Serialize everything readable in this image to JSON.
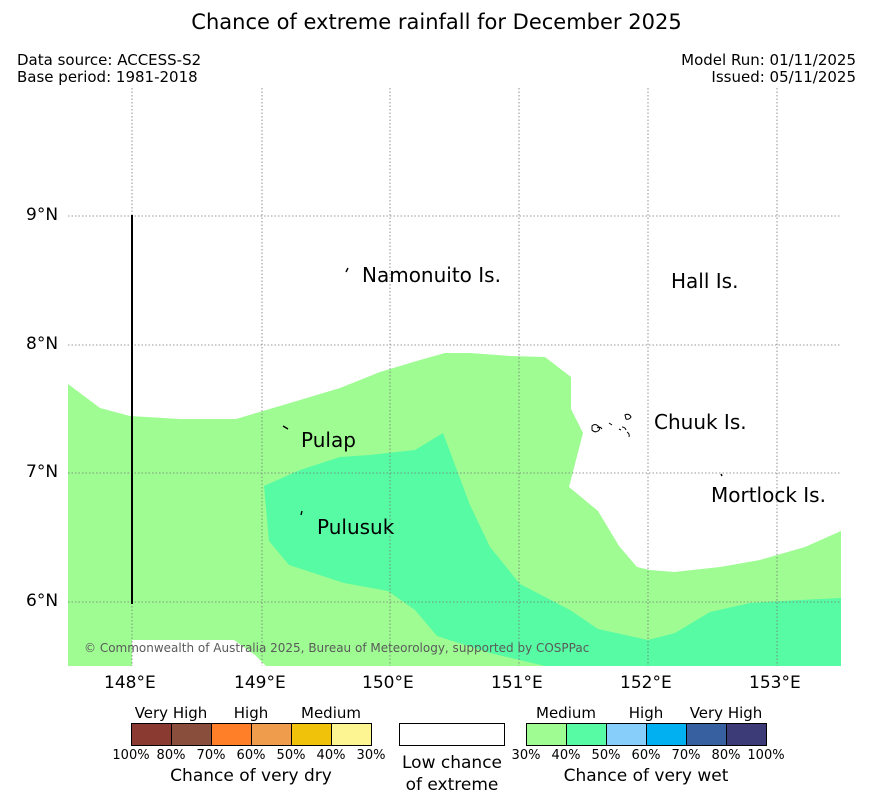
{
  "title": "Chance of extreme rainfall for December 2025",
  "header": {
    "data_source": "Data source: ACCESS-S2",
    "base_period": "Base period: 1981-2018",
    "model_run": "Model Run: 01/11/2025",
    "issued": "Issued: 05/11/2025"
  },
  "map": {
    "lat_labels": [
      "9°N",
      "8°N",
      "7°N",
      "6°N"
    ],
    "lon_labels": [
      "148°E",
      "149°E",
      "150°E",
      "151°E",
      "152°E",
      "153°E"
    ],
    "places": [
      "Namonuito Is.",
      "Hall Is.",
      "Pulap",
      "Chuuk Is.",
      "Pulusuk",
      "Mortlock Is."
    ],
    "copyright": "© Commonwealth of Australia 2025, Bureau of Meteorology, supported by COSPPac"
  },
  "legend": {
    "dry": {
      "categories": [
        "Very High",
        "High",
        "Medium"
      ],
      "colors": [
        "#8b3a32",
        "#8a4f3c",
        "#fe7f27",
        "#ef9c4c",
        "#f0c30a",
        "#fdf591"
      ],
      "ticks": [
        "100%",
        "80%",
        "70%",
        "60%",
        "50%",
        "40%",
        "30%"
      ],
      "title": "Chance of very dry"
    },
    "low": {
      "line1": "Low chance",
      "line2": "of extreme"
    },
    "wet": {
      "categories": [
        "Medium",
        "High",
        "Very High"
      ],
      "colors": [
        "#9efc93",
        "#56fba3",
        "#87cefa",
        "#00b0f0",
        "#3660a0",
        "#3c3b78"
      ],
      "ticks": [
        "30%",
        "40%",
        "50%",
        "60%",
        "70%",
        "80%",
        "100%"
      ],
      "title": "Chance of very wet"
    }
  }
}
